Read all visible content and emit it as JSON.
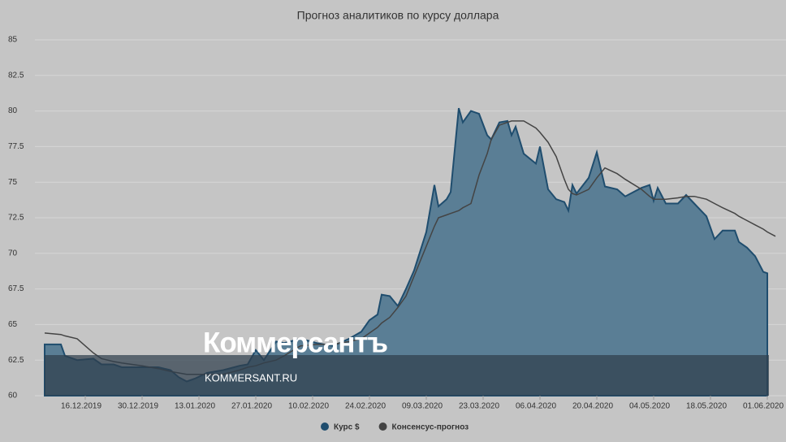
{
  "chart_data": {
    "type": "area-line",
    "title": "Прогноз аналитиков по курсу доллара",
    "x": [
      "06.12.2019",
      "10.12.2019",
      "11.12.2019",
      "14.12.2019",
      "18.12.2019",
      "20.12.2019",
      "23.12.2019",
      "25.12.2019",
      "30.12.2019",
      "03.01.2020",
      "06.01.2020",
      "08.01.2020",
      "10.01.2020",
      "12.01.2020",
      "15.01.2020",
      "19.01.2020",
      "23.01.2020",
      "25.01.2020",
      "27.01.2020",
      "29.01.2020",
      "01.02.2020",
      "03.02.2020",
      "07.02.2020",
      "11.02.2020",
      "15.02.2020",
      "19.02.2020",
      "22.02.2020",
      "24.02.2020",
      "26.02.2020",
      "27.02.2020",
      "29.02.2020",
      "02.03.2020",
      "04.03.2020",
      "06.03.2020",
      "09.03.2020",
      "11.03.2020",
      "12.03.2020",
      "14.03.2020",
      "15.03.2020",
      "17.03.2020",
      "18.03.2020",
      "20.03.2020",
      "22.03.2020",
      "24.03.2020",
      "25.03.2020",
      "27.03.2020",
      "29.03.2020",
      "30.03.2020",
      "31.03.2020",
      "02.04.2020",
      "05.04.2020",
      "06.04.2020",
      "08.04.2020",
      "10.04.2020",
      "12.04.2020",
      "13.04.2020",
      "14.04.2020",
      "15.04.2020",
      "18.04.2020",
      "20.04.2020",
      "22.04.2020",
      "25.04.2020",
      "27.04.2020",
      "01.05.2020",
      "03.05.2020",
      "04.05.2020",
      "05.05.2020",
      "07.05.2020",
      "10.05.2020",
      "12.05.2020",
      "14.05.2020",
      "17.05.2020",
      "19.05.2020",
      "21.05.2020",
      "24.05.2020",
      "25.05.2020",
      "27.05.2020",
      "29.05.2020",
      "31.05.2020",
      "01.06.2020",
      "03.06.2020"
    ],
    "series": [
      {
        "name": "Курс $",
        "color": "#1f4d6e",
        "fill": "#5a7e95",
        "values": [
          63.6,
          63.6,
          62.8,
          62.5,
          62.6,
          62.2,
          62.2,
          62.0,
          62.0,
          62.0,
          61.8,
          61.3,
          61.0,
          61.2,
          61.6,
          61.8,
          62.1,
          62.2,
          63.2,
          62.5,
          63.8,
          63.7,
          64.0,
          63.7,
          63.5,
          64.0,
          64.5,
          65.3,
          65.7,
          67.1,
          67.0,
          66.3,
          67.5,
          68.8,
          71.5,
          74.8,
          73.3,
          73.8,
          74.3,
          80.2,
          79.2,
          80.0,
          79.8,
          78.3,
          78.0,
          79.2,
          79.3,
          78.3,
          78.9,
          77.0,
          76.3,
          77.5,
          74.5,
          73.8,
          73.6,
          73.0,
          74.8,
          74.2,
          75.3,
          77.1,
          74.7,
          74.5,
          74.0,
          74.6,
          74.8,
          73.7,
          74.6,
          73.5,
          73.5,
          74.1,
          73.5,
          72.6,
          71.0,
          71.6,
          71.6,
          70.8,
          70.4,
          69.8,
          68.7,
          68.6,
          null
        ]
      },
      {
        "name": "Консенсус-прогноз",
        "color": "#444444",
        "values": [
          64.4,
          64.3,
          64.2,
          64.0,
          63.0,
          62.6,
          62.4,
          62.3,
          62.1,
          61.9,
          61.7,
          61.6,
          61.5,
          61.5,
          61.5,
          61.5,
          61.8,
          62.0,
          62.1,
          62.3,
          62.5,
          62.8,
          63.5,
          63.6,
          63.6,
          63.8,
          64.0,
          64.4,
          64.8,
          65.1,
          65.5,
          66.2,
          67.0,
          68.4,
          70.5,
          71.9,
          72.5,
          72.7,
          72.8,
          73.0,
          73.2,
          73.5,
          75.5,
          77.0,
          78.0,
          79.0,
          79.2,
          79.3,
          79.3,
          79.3,
          78.8,
          78.5,
          77.8,
          76.8,
          75.2,
          74.5,
          74.2,
          74.1,
          74.5,
          75.3,
          76.0,
          75.6,
          75.2,
          74.5,
          74.0,
          73.8,
          73.8,
          73.8,
          73.9,
          74.0,
          74.0,
          73.8,
          73.5,
          73.2,
          72.8,
          72.6,
          72.3,
          72.0,
          71.7,
          71.5,
          71.2
        ]
      }
    ],
    "xlim": [
      "06.12.2019",
      "04.06.2020"
    ],
    "xticks": [
      "16.12.2019",
      "30.12.2019",
      "13.01.2020",
      "27.01.2020",
      "10.02.2020",
      "24.02.2020",
      "09.03.2020",
      "23.03.2020",
      "06.04.2020",
      "20.04.2020",
      "04.05.2020",
      "18.05.2020",
      "01.06.2020"
    ],
    "ylim": [
      60,
      85
    ],
    "yticks": [
      60,
      62.5,
      65,
      67.5,
      70,
      72.5,
      75,
      77.5,
      80,
      82.5,
      85
    ],
    "grid": true
  },
  "watermark": {
    "logo": "Коммерсантъ",
    "site": "KOMMERSANT.RU"
  }
}
